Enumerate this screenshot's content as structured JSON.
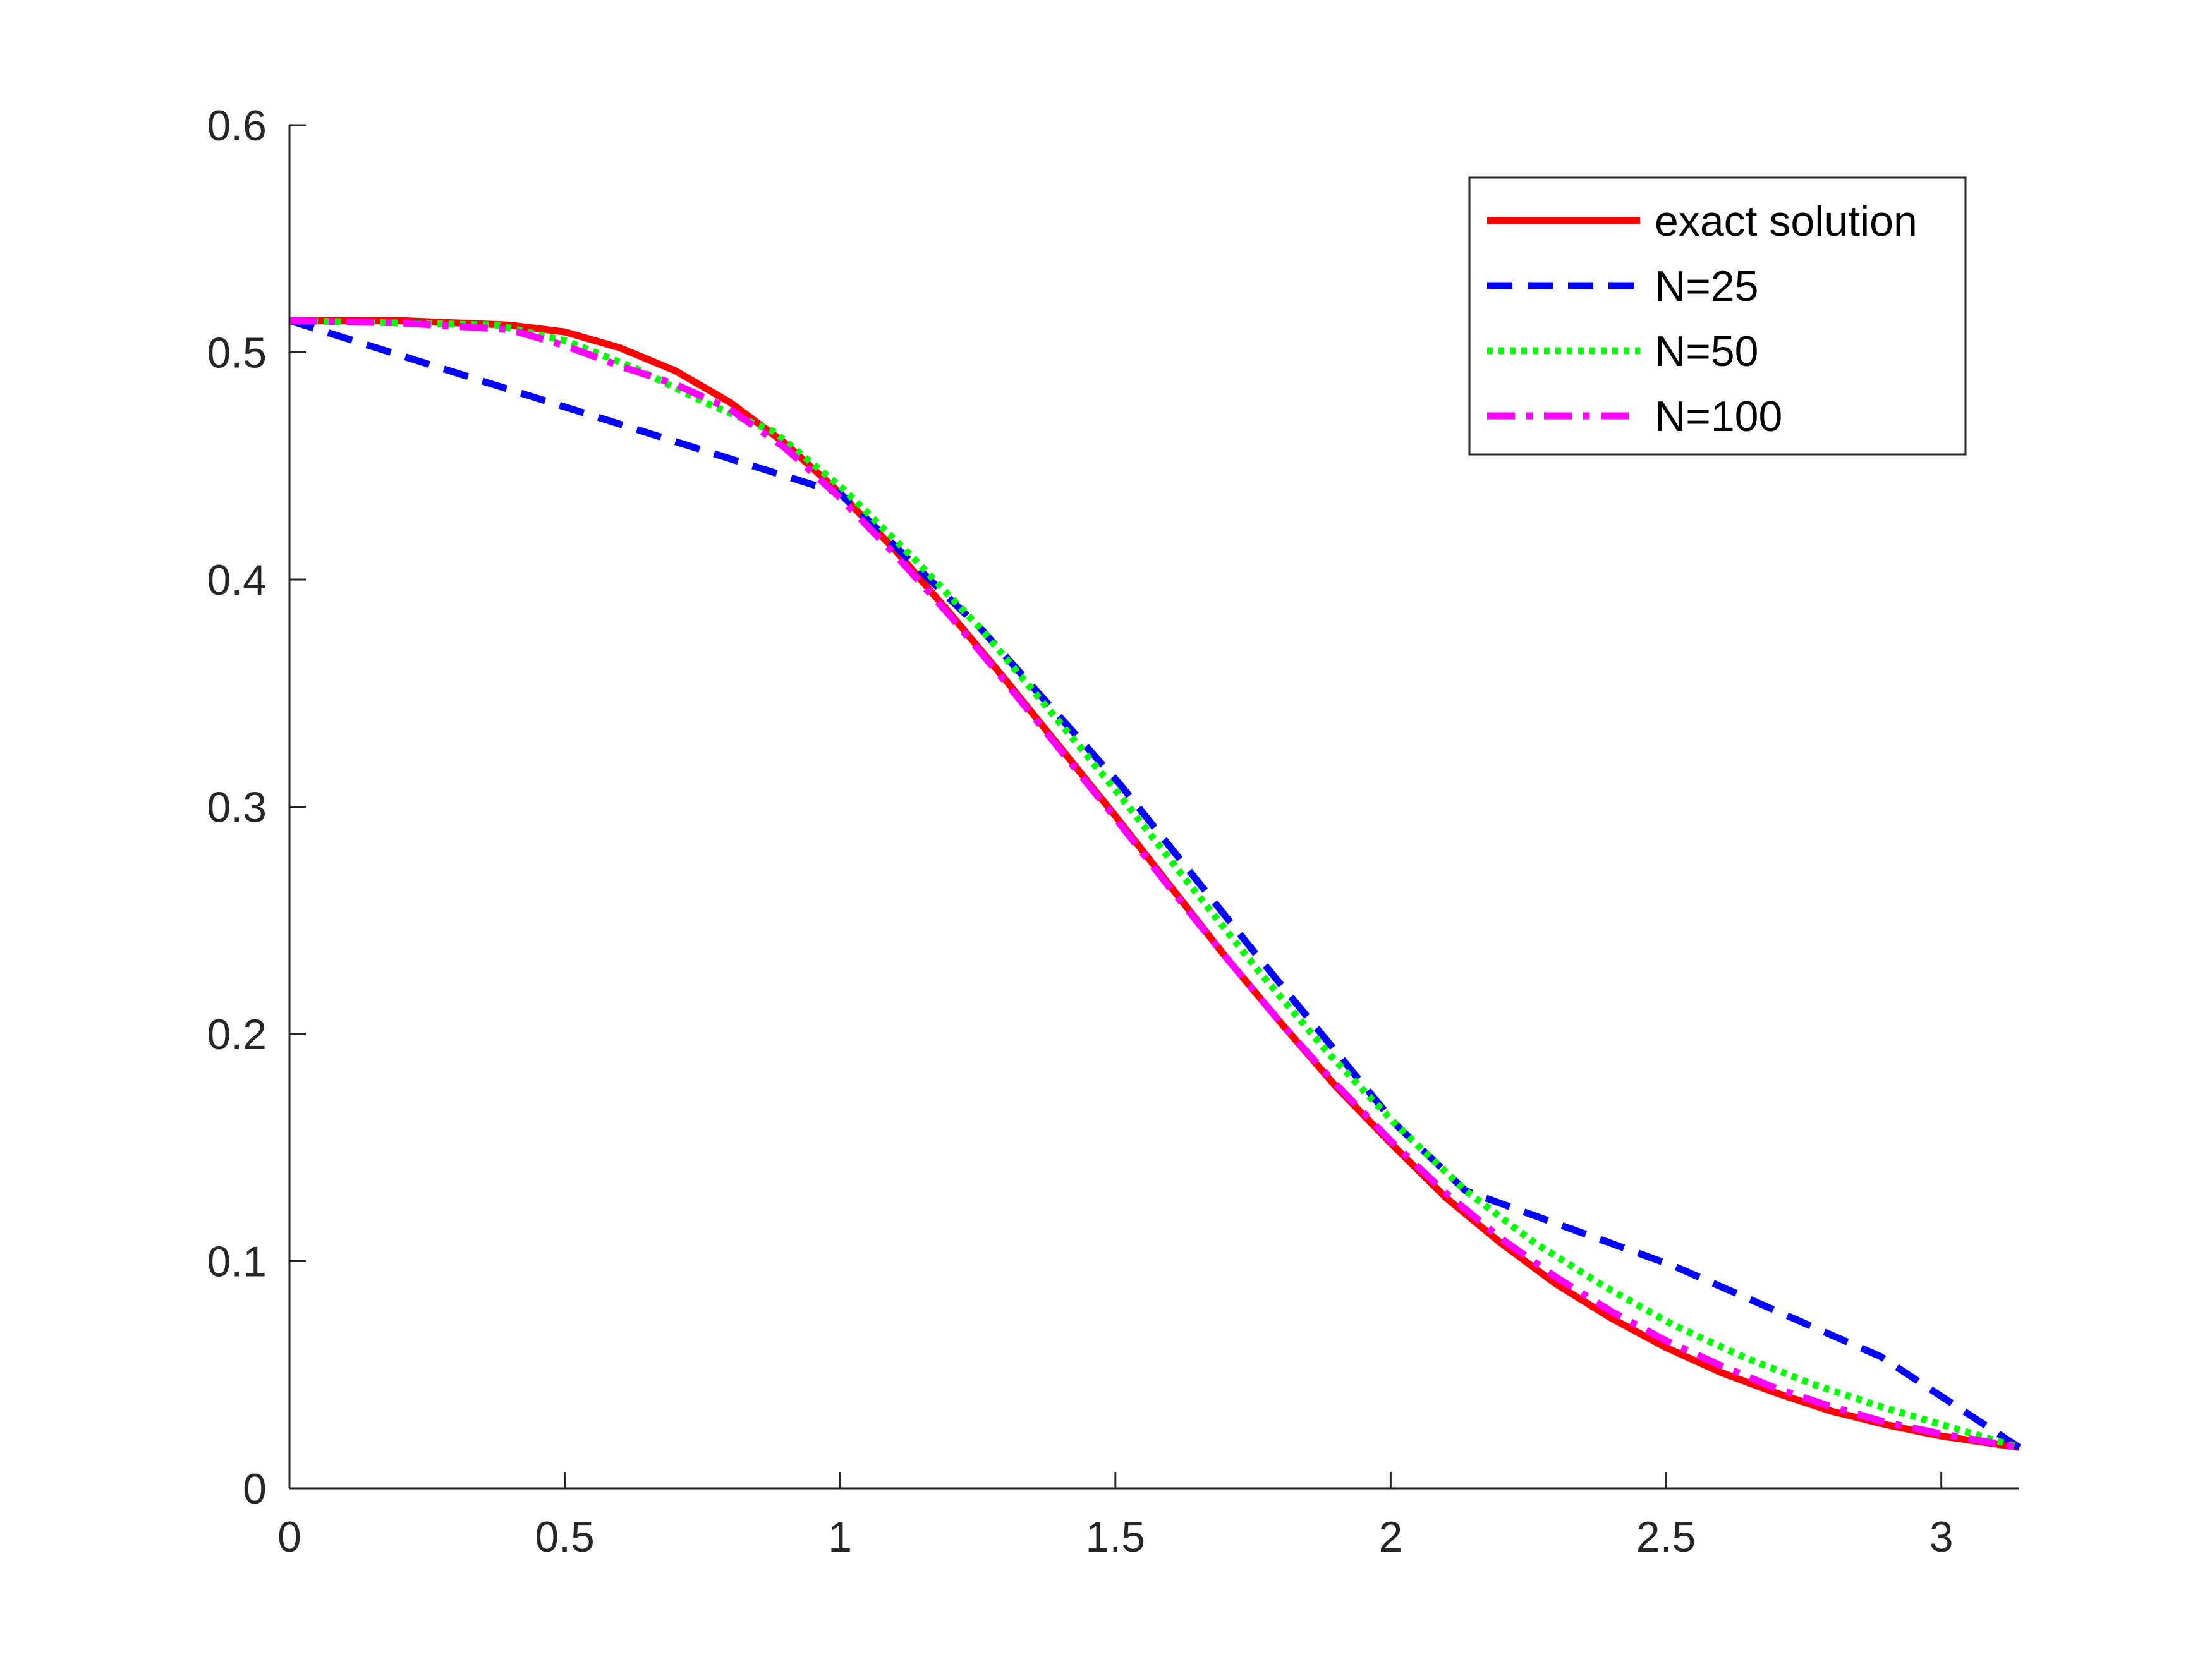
{
  "chart_data": {
    "type": "line",
    "title": "",
    "xlabel": "",
    "ylabel": "",
    "xlim": [
      0,
      3.14159
    ],
    "ylim": [
      0,
      0.6
    ],
    "xticks": [
      0,
      0.5,
      1,
      1.5,
      2,
      2.5,
      3
    ],
    "xtick_labels": [
      "0",
      "0.5",
      "1",
      "1.5",
      "2",
      "2.5",
      "3"
    ],
    "yticks": [
      0,
      0.1,
      0.2,
      0.3,
      0.4,
      0.5,
      0.6
    ],
    "ytick_labels": [
      "0",
      "0.1",
      "0.2",
      "0.3",
      "0.4",
      "0.5",
      "0.6"
    ],
    "grid": false,
    "legend_position": "top-right",
    "series": [
      {
        "name": "exact solution",
        "color": "#ff0000",
        "style": "solid",
        "x": [
          0,
          0.2,
          0.4,
          0.5,
          0.6,
          0.7,
          0.8,
          0.9,
          1.0,
          1.1,
          1.2,
          1.3,
          1.4,
          1.5,
          1.6,
          1.7,
          1.8,
          1.9,
          2.0,
          2.1,
          2.2,
          2.3,
          2.4,
          2.5,
          2.6,
          2.7,
          2.8,
          2.9,
          3.0,
          3.1416
        ],
        "y": [
          0.514,
          0.514,
          0.512,
          0.509,
          0.502,
          0.492,
          0.478,
          0.46,
          0.438,
          0.413,
          0.385,
          0.356,
          0.326,
          0.296,
          0.265,
          0.234,
          0.205,
          0.177,
          0.152,
          0.128,
          0.108,
          0.09,
          0.075,
          0.062,
          0.051,
          0.042,
          0.034,
          0.028,
          0.023,
          0.018
        ]
      },
      {
        "name": "N=25",
        "color": "#0000ff",
        "style": "dashed",
        "x": [
          0,
          1.0,
          1.257,
          1.508,
          1.759,
          2.01,
          2.136,
          2.513,
          2.89,
          3.1416
        ],
        "y": [
          0.514,
          0.438,
          0.378,
          0.31,
          0.234,
          0.16,
          0.131,
          0.098,
          0.058,
          0.018
        ]
      },
      {
        "name": "N=50",
        "color": "#00ff00",
        "style": "dotted",
        "x": [
          0,
          0.377,
          0.503,
          0.628,
          0.754,
          0.88,
          1.005,
          1.131,
          1.257,
          1.382,
          1.508,
          1.634,
          1.759,
          1.885,
          2.01,
          2.136,
          2.262,
          2.387,
          2.513,
          2.639,
          2.765,
          2.89,
          3.016,
          3.1416
        ],
        "y": [
          0.514,
          0.512,
          0.505,
          0.493,
          0.478,
          0.465,
          0.44,
          0.41,
          0.378,
          0.342,
          0.305,
          0.266,
          0.228,
          0.192,
          0.16,
          0.131,
          0.108,
          0.089,
          0.072,
          0.058,
          0.046,
          0.036,
          0.027,
          0.018
        ]
      },
      {
        "name": "N=100",
        "color": "#ff00ff",
        "style": "dashdot",
        "x": [
          0,
          0.2,
          0.4,
          0.5,
          0.6,
          0.7,
          0.8,
          0.9,
          1.0,
          1.1,
          1.2,
          1.3,
          1.4,
          1.5,
          1.6,
          1.7,
          1.8,
          1.9,
          2.0,
          2.1,
          2.2,
          2.3,
          2.4,
          2.5,
          2.6,
          2.7,
          2.8,
          2.9,
          3.0,
          3.1416
        ],
        "y": [
          0.514,
          0.513,
          0.51,
          0.503,
          0.494,
          0.486,
          0.475,
          0.458,
          0.436,
          0.411,
          0.384,
          0.355,
          0.325,
          0.295,
          0.264,
          0.234,
          0.205,
          0.178,
          0.153,
          0.13,
          0.11,
          0.093,
          0.078,
          0.065,
          0.054,
          0.044,
          0.036,
          0.029,
          0.024,
          0.018
        ]
      }
    ]
  }
}
